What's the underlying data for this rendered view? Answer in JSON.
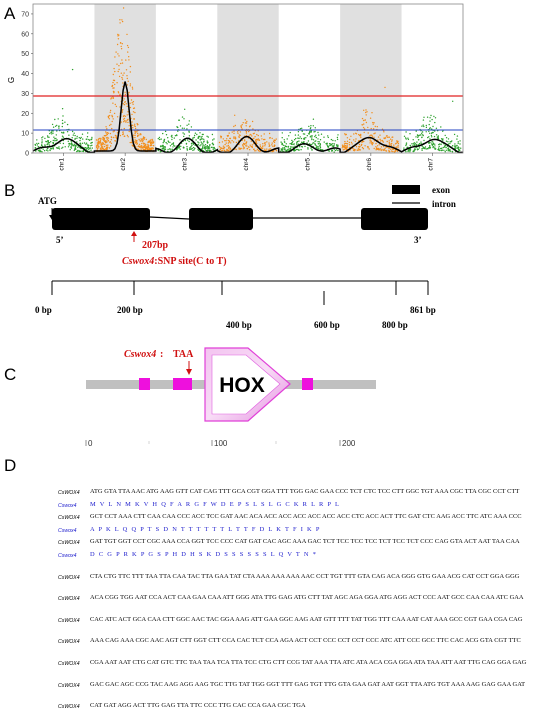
{
  "panels": {
    "a": "A",
    "b": "B",
    "c": "C",
    "d": "D"
  },
  "panelA": {
    "ylabel": "G",
    "yticks": [
      "0",
      "10",
      "20",
      "30",
      "40",
      "50",
      "60",
      "70"
    ],
    "chromosomes": [
      "chr1",
      "chr2",
      "chr3",
      "chr4",
      "chr5",
      "chr6",
      "chr7"
    ],
    "colors": {
      "green": "#2ca02c",
      "orange": "#f28e1c",
      "threshold_red": "#e02020",
      "threshold_blue": "#2040c0",
      "band": "#e0e0e0"
    }
  },
  "chart_data": {
    "type": "scatter",
    "title": "",
    "xlabel": "",
    "ylabel": "G",
    "ylim": [
      0,
      75
    ],
    "categories": [
      "chr1",
      "chr2",
      "chr3",
      "chr4",
      "chr5",
      "chr6",
      "chr7"
    ],
    "thresholds": [
      27.5,
      9
    ],
    "smoothed_peaks": [
      {
        "chromosome": "chr1",
        "value": 8
      },
      {
        "chromosome": "chr2",
        "value": 36
      },
      {
        "chromosome": "chr3",
        "value": 6
      },
      {
        "chromosome": "chr4",
        "value": 7
      },
      {
        "chromosome": "chr5",
        "value": 4
      },
      {
        "chromosome": "chr6",
        "value": 9
      },
      {
        "chromosome": "chr7",
        "value": 8
      }
    ],
    "max_points": [
      {
        "chromosome": "chr1",
        "value": 42
      },
      {
        "chromosome": "chr2",
        "value": 73
      },
      {
        "chromosome": "chr3",
        "value": 22
      },
      {
        "chromosome": "chr4",
        "value": 19
      },
      {
        "chromosome": "chr5",
        "value": 17
      },
      {
        "chromosome": "chr6",
        "value": 33
      },
      {
        "chromosome": "chr7",
        "value": 26
      }
    ]
  },
  "panelB": {
    "atg": "ATG",
    "legend_exon": "exon",
    "legend_intron": "intron",
    "five_prime": "5’",
    "three_prime": "3’",
    "snp_pos": "207bp",
    "snp_gene": "Cswox4",
    "snp_desc": ":SNP site(C to T)",
    "scale": [
      "0 bp",
      "200 bp",
      "400 bp",
      "600 bp",
      "800 bp",
      "861 bp"
    ]
  },
  "panelC": {
    "gene": "Cswox4",
    "stop": "TAA",
    "domain": "HOX",
    "ticks": [
      "0",
      "100",
      "200"
    ]
  },
  "panelD": {
    "rows": [
      {
        "label": "CsWOX4",
        "type": "dna",
        "text": "ATG GTA TTA AAC ATG AAG GTT CAT CAG TTT GCA CGT GGA TTT TGG GAC GAA CCC TCT CTC TCC CTT GGC TGT AAA CGC TTA CGC CCT CTT"
      },
      {
        "label": "Cswox4",
        "type": "prot",
        "text": "M V L N M K V H Q F A R G F W D E P S L S L G C K R L R P L"
      },
      {
        "label": "CsWOX4",
        "type": "dna",
        "text": "GCT CCT AAA CTT CAA CAA CCC ACC TCC GAT AAC ACA ACC ACC ACC ACC ACC ACC CTC ACC ACT TTC GAT CTC AAG ACC TTC ATC AAA CCC"
      },
      {
        "label": "Cswox4",
        "type": "prot",
        "text": "A P K L Q Q P T S D N T T T T T T L T T F D L K T F I K P"
      },
      {
        "label": "CsWOX4",
        "type": "dna",
        "text": "GAT TGT GGT CCT CGC AAA CCA GGT TCC CCC CAT GAT CAC AGC AAA GAC TCT TCC TCC TCC TCT TCC TCT CCC CAG GTA ACT AAT TAA CAA"
      },
      {
        "label": "Cswox4",
        "type": "prot",
        "text": "D C G P R K P G S P H D H S K D S S S S S S L Q V T N *"
      },
      {
        "label": "CsWOX4",
        "type": "dna",
        "text": "CTA CTG TTC TTT TAA TTA CAA TAC TTA GAA TAT CTA AAA AAA AAA AAC CCT TGT TTT GTA CAG ACA GGG GTG GAA ACG CAT CCT GGA GGG"
      },
      {
        "label": "CsWOX4",
        "type": "dna",
        "text": "ACA CGG TGG AAT CCA ACT CAA GAA CAA ATT GGG ATA TTG GAG ATG CTT TAT AGC AGA GGA ATG AGG ACT CCC AAT GCC CAA CAA ATC GAA"
      },
      {
        "label": "CsWOX4",
        "type": "dna",
        "text": "CAC ATC ACT GCA CAA CTT GGC AAC TAC GGA AAG ATT GAA GGC AAG AAT GTT TTT TAT TGG TTT CAA AAT CAT AAA GCC CGT GAA CGA CAG"
      },
      {
        "label": "CsWOX4",
        "type": "dna",
        "text": "AAA CAG AAA CGC AAC AGT CTT GGT CTT CCA CAC TCT CCA AGA ACT CCT CCC CCT CCT CCC ATC ATT CCC GCC TTC CAC ACG GTA CGT TTC"
      },
      {
        "label": "CsWOX4",
        "type": "dna",
        "text": "CGA AAT AAT CTG CAT GTC TTC TAA TAA TCA TTA TCC CTG CTT CCG TAT AAA TTA ATC ATA ACA CGA GGA ATA TAA ATT AAT TTG CAG GGA GAG"
      },
      {
        "label": "CsWOX4",
        "type": "dna",
        "text": "GAC GAC AGC CCG TAC AAG AGG AAG TGC TTG TAT TGG GGT TTT GAG TGT TTG GTA GAA GAT AAT GGT TTA ATG TGT AAA AAG GAG GAA GAT"
      },
      {
        "label": "CsWOX4",
        "type": "dna",
        "text": "CAT GAT AGG ACT TTG GAG TTA TTC CCC TTG CAC CCA GAA CGC TGA"
      }
    ]
  }
}
